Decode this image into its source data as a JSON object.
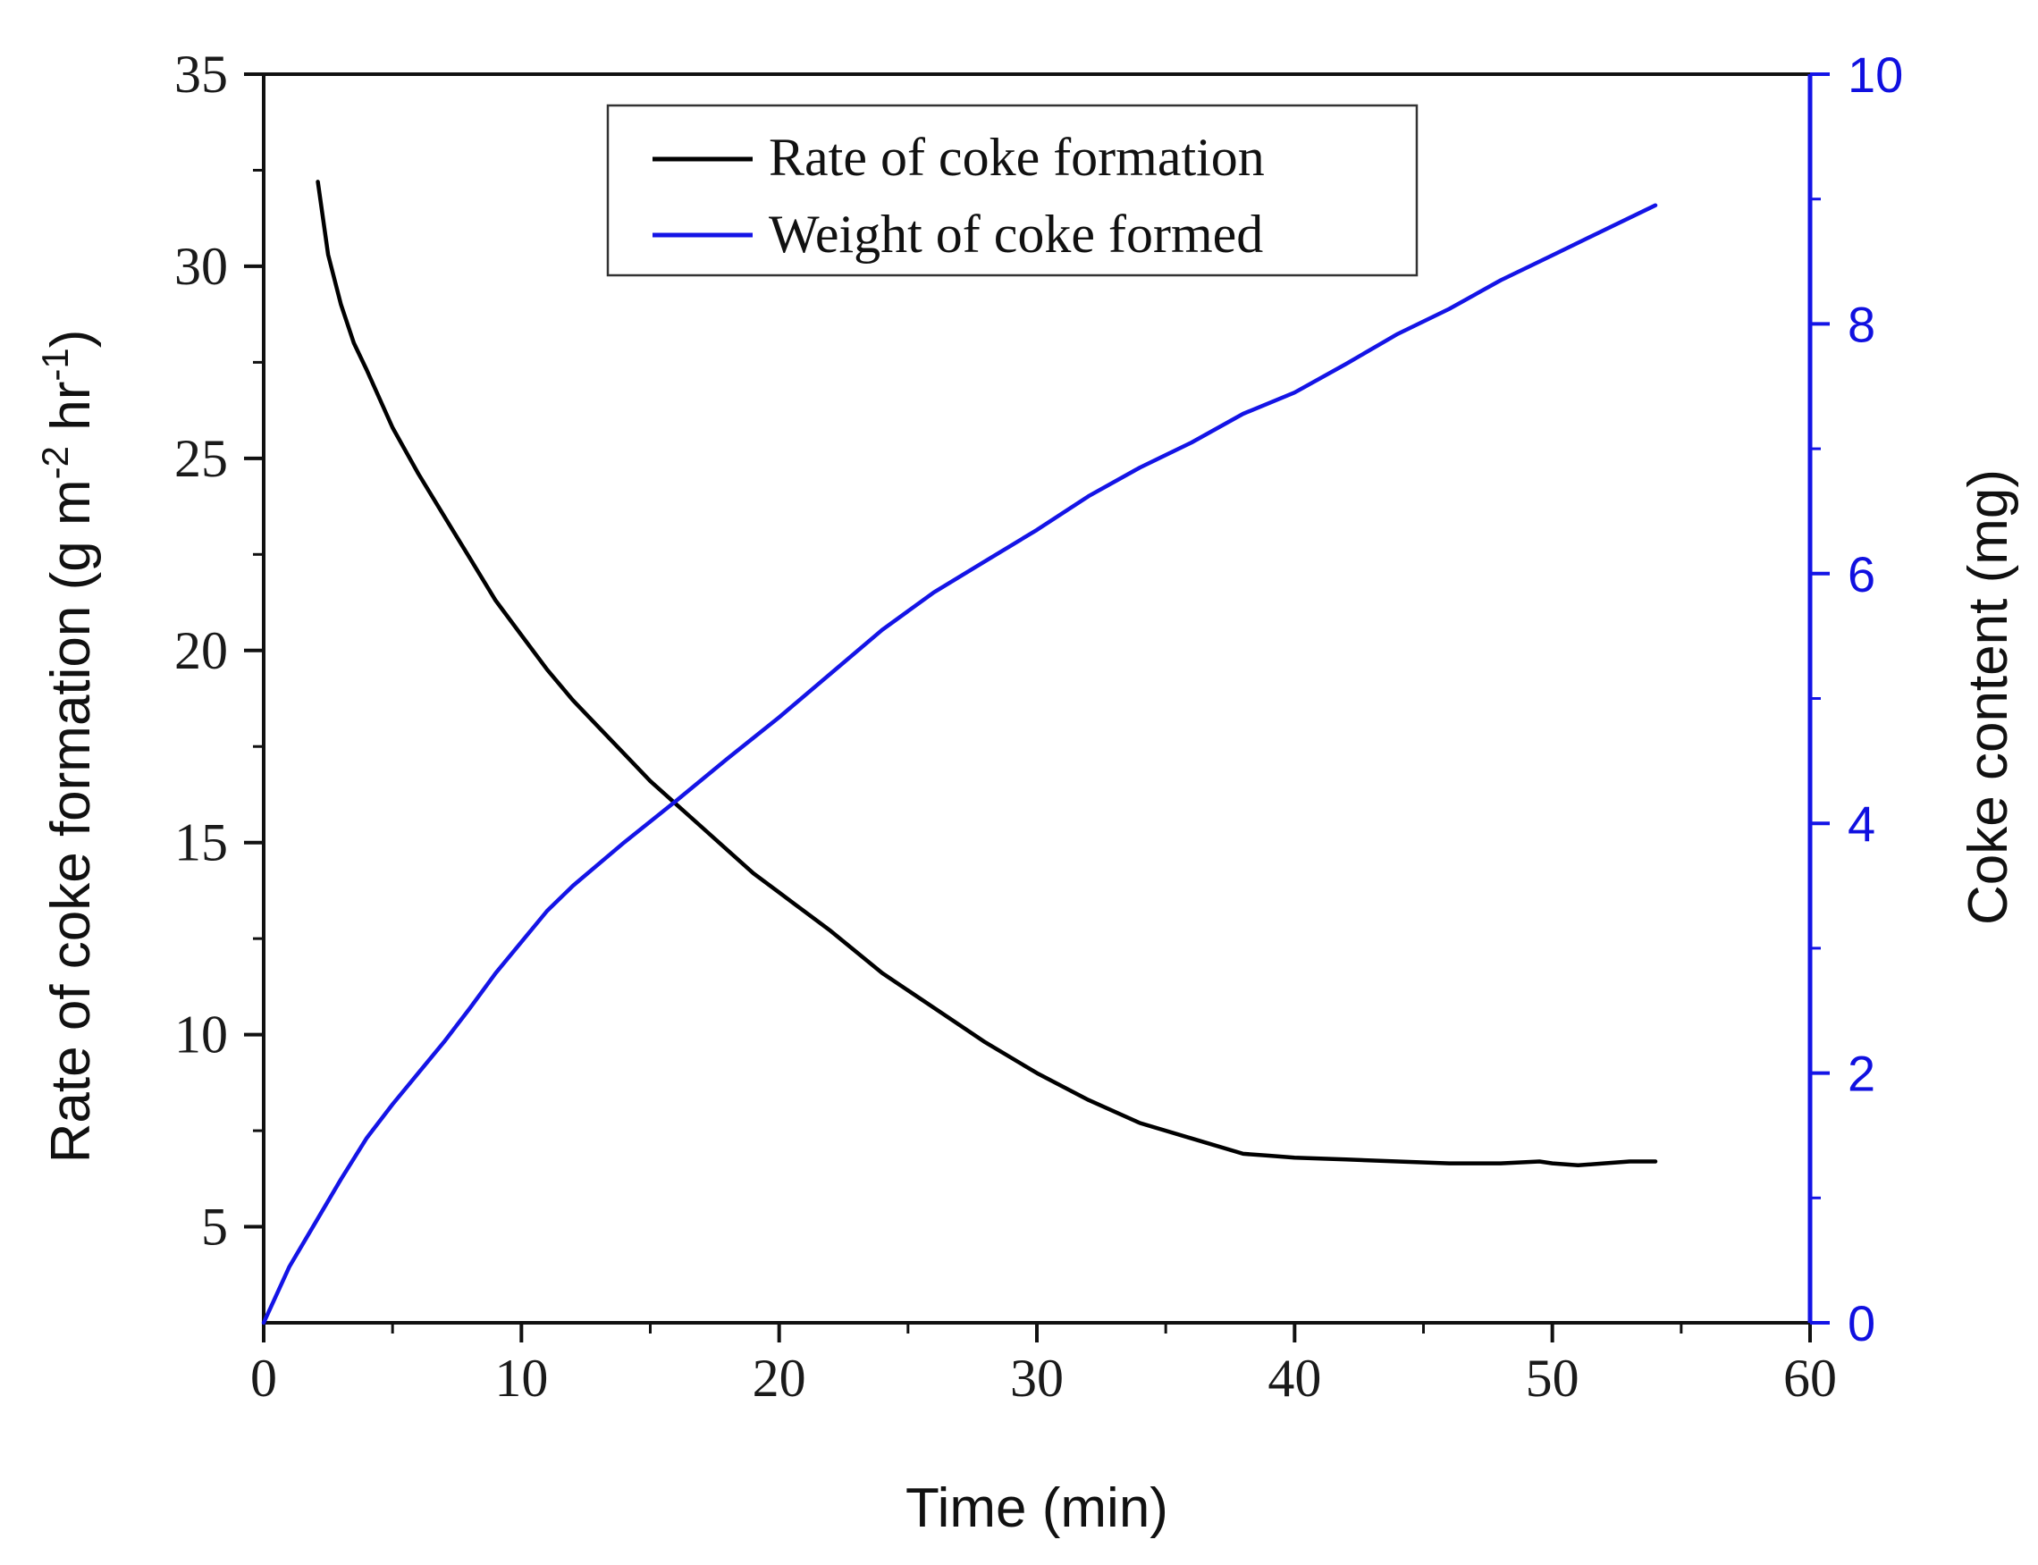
{
  "chart_data": {
    "type": "line",
    "title": "",
    "xlabel": "Time (min)",
    "ylabel_left_prefix": "Rate of coke formation (g m",
    "ylabel_left_sup1": "-2",
    "ylabel_left_mid": " hr",
    "ylabel_left_sup2": "-1",
    "ylabel_left_suffix": ")",
    "ylabel_right": "Coke content (mg)",
    "xlim": [
      0,
      60
    ],
    "ylim_left": [
      2.5,
      35
    ],
    "ylim_right": [
      0,
      10
    ],
    "x_ticks": [
      0,
      10,
      20,
      30,
      40,
      50,
      60
    ],
    "y_left_ticks": [
      5,
      10,
      15,
      20,
      25,
      30,
      35
    ],
    "y_right_ticks": [
      0,
      2,
      4,
      6,
      8,
      10
    ],
    "legend_position": "top-center",
    "series": [
      {
        "name": "Rate of coke formation",
        "axis": "left",
        "color": "#000000",
        "x": [
          2.1,
          2.5,
          3,
          3.5,
          4,
          5,
          6,
          7,
          8,
          9,
          10,
          11,
          12,
          13,
          14,
          15,
          16,
          17,
          18,
          19,
          20,
          22,
          24,
          26,
          28,
          30,
          32,
          34,
          36,
          38,
          39,
          40,
          42,
          44,
          46,
          48,
          49.5,
          50,
          51,
          52,
          53,
          54
        ],
        "y": [
          32.2,
          30.3,
          29.0,
          28.0,
          27.3,
          25.8,
          24.6,
          23.5,
          22.4,
          21.3,
          20.4,
          19.5,
          18.7,
          18.0,
          17.3,
          16.6,
          16.0,
          15.4,
          14.8,
          14.2,
          13.7,
          12.7,
          11.6,
          10.7,
          9.8,
          9.0,
          8.3,
          7.7,
          7.3,
          6.9,
          6.85,
          6.8,
          6.75,
          6.7,
          6.65,
          6.65,
          6.7,
          6.65,
          6.6,
          6.65,
          6.7,
          6.7
        ]
      },
      {
        "name": "Weight of coke formed",
        "axis": "right",
        "color": "#1414e6",
        "x": [
          0,
          1,
          2,
          3,
          4,
          5,
          6,
          7,
          8,
          9,
          10,
          11,
          12,
          14,
          16,
          18,
          20,
          22,
          24,
          26,
          28,
          30,
          32,
          34,
          36,
          38,
          40,
          42,
          44,
          46,
          48,
          50,
          52,
          54
        ],
        "y": [
          0,
          0.45,
          0.8,
          1.15,
          1.48,
          1.75,
          2.0,
          2.25,
          2.52,
          2.8,
          3.05,
          3.3,
          3.5,
          3.85,
          4.18,
          4.52,
          4.85,
          5.2,
          5.55,
          5.85,
          6.1,
          6.35,
          6.62,
          6.85,
          7.05,
          7.28,
          7.45,
          7.68,
          7.92,
          8.12,
          8.35,
          8.55,
          8.75,
          8.95
        ]
      }
    ]
  }
}
